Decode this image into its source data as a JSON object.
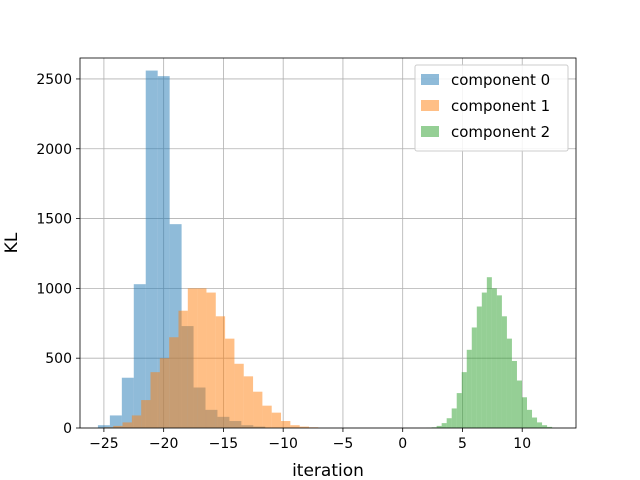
{
  "chart_data": {
    "type": "bar",
    "subtype": "histogram",
    "xlabel": "iteration",
    "ylabel": "KL",
    "xlim": [
      -27,
      14.5
    ],
    "ylim": [
      0,
      2650
    ],
    "xticks": [
      -25,
      -20,
      -15,
      -10,
      -5,
      0,
      5,
      10
    ],
    "xtick_labels": [
      "−25",
      "−20",
      "−15",
      "−10",
      "−5",
      "0",
      "5",
      "10"
    ],
    "yticks": [
      0,
      500,
      1000,
      1500,
      2000,
      2500
    ],
    "ytick_labels": [
      "0",
      "500",
      "1000",
      "1500",
      "2000",
      "2500"
    ],
    "grid": true,
    "legend_position": "top-right",
    "series": [
      {
        "name": "component 0",
        "color": "#1f77b4",
        "opacity": 0.5,
        "bin_width": 1.0,
        "bins": [
          [
            -25.5,
            20
          ],
          [
            -24.5,
            90
          ],
          [
            -23.5,
            360
          ],
          [
            -22.5,
            1030
          ],
          [
            -21.5,
            2560
          ],
          [
            -20.5,
            2520
          ],
          [
            -19.5,
            1460
          ],
          [
            -18.5,
            730
          ],
          [
            -17.5,
            290
          ],
          [
            -16.5,
            130
          ],
          [
            -15.5,
            80
          ],
          [
            -14.5,
            50
          ],
          [
            -13.5,
            20
          ],
          [
            -12.5,
            10
          ]
        ]
      },
      {
        "name": "component 1",
        "color": "#ff7f0e",
        "opacity": 0.5,
        "bin_width": 0.78,
        "bins": [
          [
            -25.0,
            5
          ],
          [
            -24.22,
            15
          ],
          [
            -23.44,
            40
          ],
          [
            -22.66,
            90
          ],
          [
            -21.88,
            200
          ],
          [
            -21.1,
            400
          ],
          [
            -20.32,
            500
          ],
          [
            -19.54,
            650
          ],
          [
            -18.76,
            840
          ],
          [
            -17.98,
            1000
          ],
          [
            -17.2,
            1000
          ],
          [
            -16.42,
            970
          ],
          [
            -15.64,
            800
          ],
          [
            -14.86,
            640
          ],
          [
            -14.08,
            460
          ],
          [
            -13.3,
            370
          ],
          [
            -12.52,
            260
          ],
          [
            -11.74,
            160
          ],
          [
            -10.96,
            110
          ],
          [
            -10.18,
            50
          ],
          [
            -9.4,
            20
          ],
          [
            -8.62,
            10
          ],
          [
            -7.84,
            5
          ]
        ]
      },
      {
        "name": "component 2",
        "color": "#2ca02c",
        "opacity": 0.5,
        "bin_width": 0.42,
        "bins": [
          [
            2.0,
            2
          ],
          [
            2.42,
            5
          ],
          [
            2.84,
            15
          ],
          [
            3.26,
            35
          ],
          [
            3.68,
            70
          ],
          [
            4.1,
            140
          ],
          [
            4.52,
            250
          ],
          [
            4.94,
            400
          ],
          [
            5.36,
            560
          ],
          [
            5.78,
            720
          ],
          [
            6.2,
            870
          ],
          [
            6.62,
            970
          ],
          [
            7.04,
            1080
          ],
          [
            7.46,
            1000
          ],
          [
            7.88,
            950
          ],
          [
            8.3,
            800
          ],
          [
            8.72,
            640
          ],
          [
            9.14,
            480
          ],
          [
            9.56,
            340
          ],
          [
            9.98,
            220
          ],
          [
            10.4,
            130
          ],
          [
            10.82,
            75
          ],
          [
            11.24,
            40
          ],
          [
            11.66,
            20
          ],
          [
            12.08,
            8
          ]
        ]
      }
    ]
  }
}
